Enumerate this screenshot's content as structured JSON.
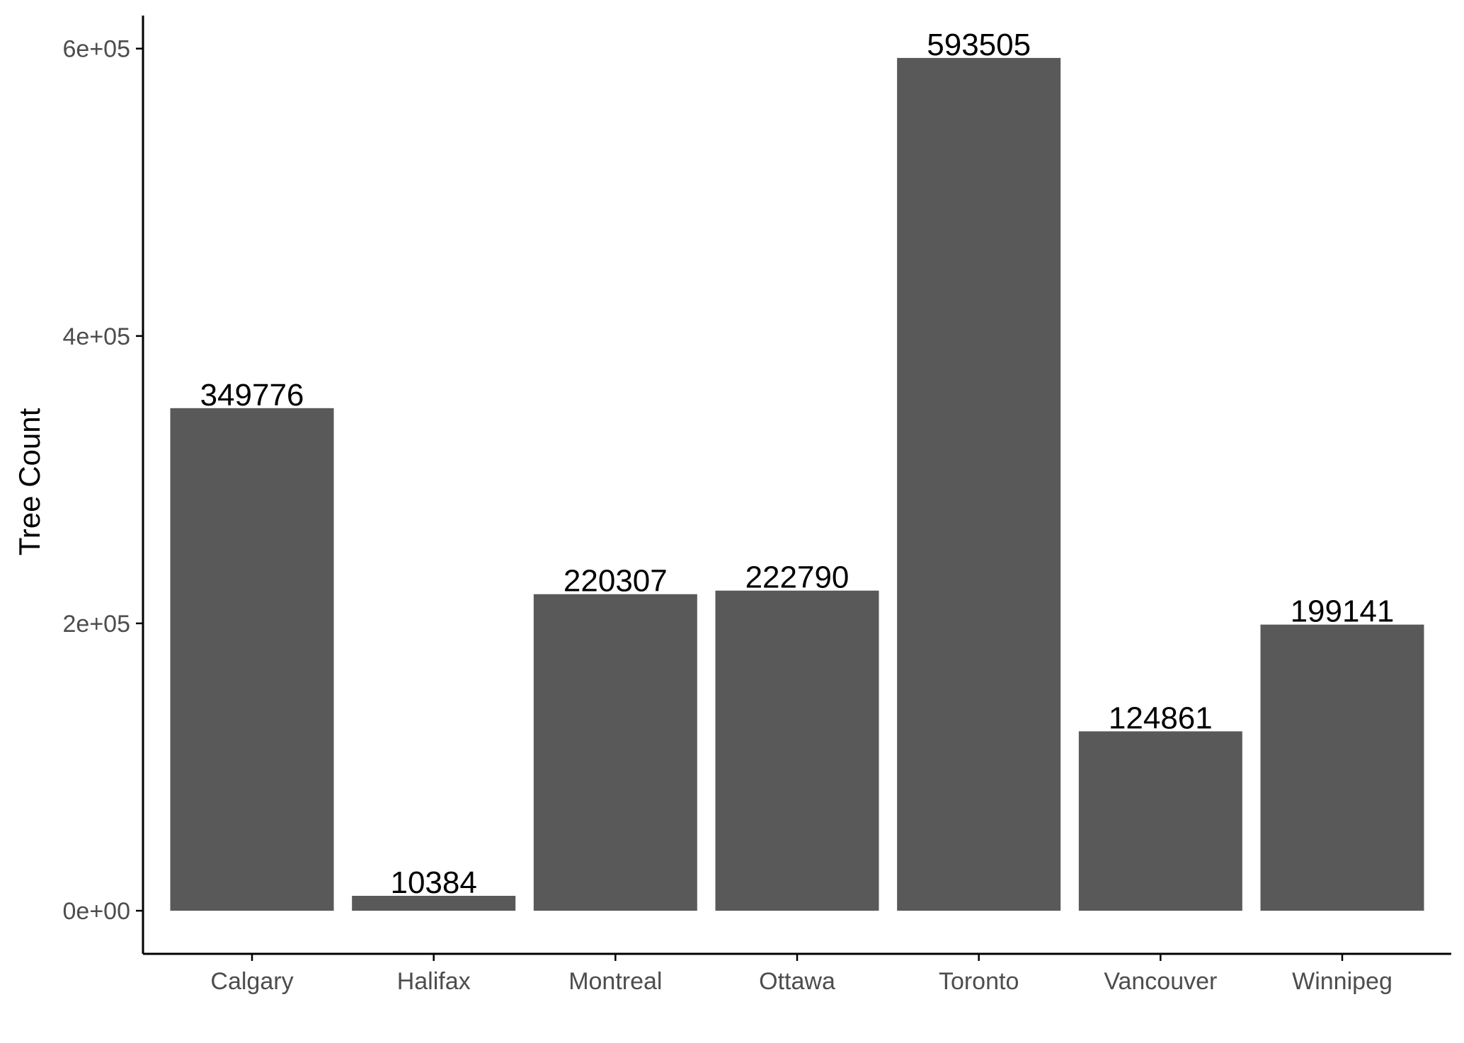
{
  "chart_data": {
    "type": "bar",
    "categories": [
      "Calgary",
      "Halifax",
      "Montreal",
      "Ottawa",
      "Toronto",
      "Vancouver",
      "Winnipeg"
    ],
    "values": [
      349776,
      10384,
      220307,
      222790,
      593505,
      124861,
      199141
    ],
    "data_labels": [
      "349776",
      "10384",
      "220307",
      "222790",
      "593505",
      "124861",
      "199141"
    ],
    "title": "",
    "xlabel": "",
    "ylabel": "Tree Count",
    "ylim": [
      -30000,
      623000
    ],
    "yticks": [
      0,
      200000,
      400000,
      600000
    ],
    "ytick_labels": [
      "0e+00",
      "2e+05",
      "4e+05",
      "6e+05"
    ],
    "grid": false,
    "legend": "none",
    "bar_color": "#595959",
    "axis_color": "#000000",
    "tick_label_color": "#4d4d4d"
  }
}
